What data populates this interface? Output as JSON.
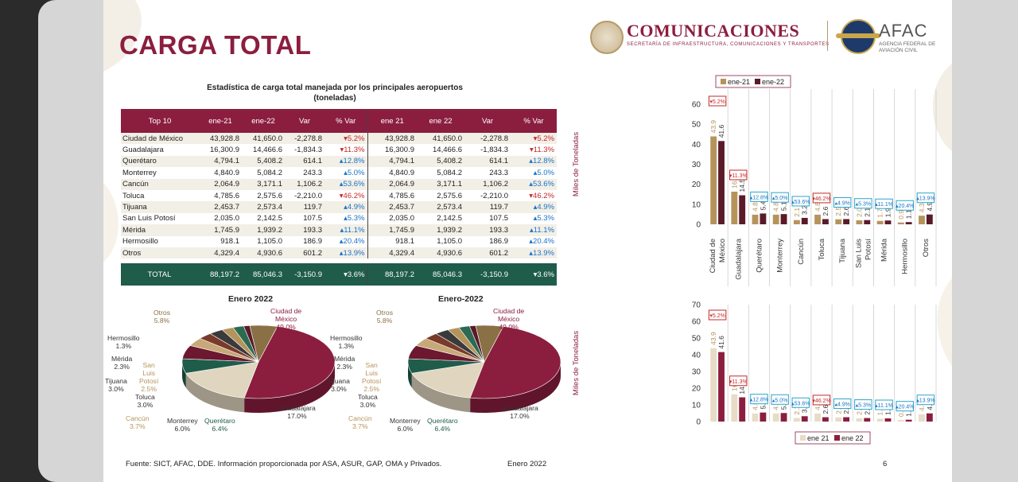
{
  "title": "CARGA TOTAL",
  "logos": {
    "comunicaciones": "COMUNICACIONES",
    "comunicaciones_sub": "SECRETARÍA DE INFRAESTRUCTURA, COMUNICACIONES Y TRANSPORTES",
    "afac": "AFAC",
    "afac_sub": "AGENCIA FEDERAL DE AVIACIÓN CIVIL"
  },
  "table": {
    "title_line1": "Estadística de carga total manejada por los principales aeropuertos",
    "title_line2": "(toneladas)",
    "headers": [
      "Top 10",
      "ene-21",
      "ene-22",
      "Var",
      "% Var",
      "ene 21",
      "ene 22",
      "Var",
      "% Var"
    ],
    "rows": [
      {
        "name": "Ciudad de México",
        "a": "43,928.8",
        "b": "41,650.0",
        "var": "-2,278.8",
        "pct": "▾5.2%",
        "dir": "dn"
      },
      {
        "name": "Guadalajara",
        "a": "16,300.9",
        "b": "14,466.6",
        "var": "-1,834.3",
        "pct": "▾11.3%",
        "dir": "dn"
      },
      {
        "name": "Querétaro",
        "a": "4,794.1",
        "b": "5,408.2",
        "var": "614.1",
        "pct": "▴12.8%",
        "dir": "up"
      },
      {
        "name": "Monterrey",
        "a": "4,840.9",
        "b": "5,084.2",
        "var": "243.3",
        "pct": "▴5.0%",
        "dir": "up"
      },
      {
        "name": "Cancún",
        "a": "2,064.9",
        "b": "3,171.1",
        "var": "1,106.2",
        "pct": "▴53.6%",
        "dir": "up"
      },
      {
        "name": "Toluca",
        "a": "4,785.6",
        "b": "2,575.6",
        "var": "-2,210.0",
        "pct": "▾46.2%",
        "dir": "dn"
      },
      {
        "name": "Tijuana",
        "a": "2,453.7",
        "b": "2,573.4",
        "var": "119.7",
        "pct": "▴4.9%",
        "dir": "up"
      },
      {
        "name": "San Luis Potosí",
        "a": "2,035.0",
        "b": "2,142.5",
        "var": "107.5",
        "pct": "▴5.3%",
        "dir": "up"
      },
      {
        "name": "Mérida",
        "a": "1,745.9",
        "b": "1,939.2",
        "var": "193.3",
        "pct": "▴11.1%",
        "dir": "up"
      },
      {
        "name": "Hermosillo",
        "a": "918.1",
        "b": "1,105.0",
        "var": "186.9",
        "pct": "▴20.4%",
        "dir": "up"
      },
      {
        "name": "Otros",
        "a": "4,329.4",
        "b": "4,930.6",
        "var": "601.2",
        "pct": "▴13.9%",
        "dir": "up"
      }
    ],
    "total": {
      "name": "TOTAL",
      "a": "88,197.2",
      "b": "85,046.3",
      "var": "-3,150.9",
      "pct": "▾3.6%"
    }
  },
  "pie_titles": [
    "Enero 2022",
    "Enero-2022"
  ],
  "chart_data": [
    {
      "type": "pie",
      "title": "Enero 2022",
      "slices": [
        {
          "label": "Ciudad de México",
          "value": 49.0,
          "text": "49.0%",
          "color": "#8b1e3f"
        },
        {
          "label": "Guadalajara",
          "value": 17.0,
          "text": "17.0%",
          "color": "#e0d5bf"
        },
        {
          "label": "Querétaro",
          "value": 6.4,
          "text": "6.4%",
          "color": "#1f5c4a"
        },
        {
          "label": "Monterrey",
          "value": 6.0,
          "text": "6.0%",
          "color": "#6b1830"
        },
        {
          "label": "Cancún",
          "value": 3.7,
          "text": "3.7%",
          "color": "#c8a878"
        },
        {
          "label": "Toluca",
          "value": 3.0,
          "text": "3.0%",
          "color": "#7a3a2a"
        },
        {
          "label": "Tijuana",
          "value": 3.0,
          "text": "3.0%",
          "color": "#3a3a3a"
        },
        {
          "label": "San Luis Potosí",
          "value": 2.5,
          "text": "2.5%",
          "color": "#b5945c"
        },
        {
          "label": "Mérida",
          "value": 2.3,
          "text": "2.3%",
          "color": "#2c6b52"
        },
        {
          "label": "Hermosillo",
          "value": 1.3,
          "text": "1.3%",
          "color": "#5a1a2a"
        },
        {
          "label": "Otros",
          "value": 5.8,
          "text": "5.8%",
          "color": "#8a7045"
        }
      ]
    },
    {
      "type": "pie",
      "title": "Enero-2022",
      "slices": [
        {
          "label": "Ciudad de México",
          "value": 49.0,
          "text": "49.0%",
          "color": "#8b1e3f"
        },
        {
          "label": "Guadalajara",
          "value": 17.0,
          "text": "17.0%",
          "color": "#e0d5bf"
        },
        {
          "label": "Querétaro",
          "value": 6.4,
          "text": "6.4%",
          "color": "#1f5c4a"
        },
        {
          "label": "Monterrey",
          "value": 6.0,
          "text": "6.0%",
          "color": "#6b1830"
        },
        {
          "label": "Cancún",
          "value": 3.7,
          "text": "3.7%",
          "color": "#c8a878"
        },
        {
          "label": "Toluca",
          "value": 3.0,
          "text": "3.0%",
          "color": "#7a3a2a"
        },
        {
          "label": "Tijuana",
          "value": 3.0,
          "text": "3.0%",
          "color": "#3a3a3a"
        },
        {
          "label": "San Luis Potosí",
          "value": 2.5,
          "text": "2.5%",
          "color": "#b5945c"
        },
        {
          "label": "Mérida",
          "value": 2.3,
          "text": "2.3%",
          "color": "#2c6b52"
        },
        {
          "label": "Hermosillo",
          "value": 1.3,
          "text": "1.3%",
          "color": "#5a1a2a"
        },
        {
          "label": "Otros",
          "value": 5.8,
          "text": "5.8%",
          "color": "#8a7045"
        }
      ]
    },
    {
      "type": "bar",
      "categories": [
        "Ciudad de México",
        "Guadalajara",
        "Querétaro",
        "Monterrey",
        "Cancún",
        "Toluca",
        "Tijuana",
        "San Luis Potosí",
        "Mérida",
        "Hermosillo",
        "Otros"
      ],
      "series": [
        {
          "name": "ene-21",
          "values": [
            43.9,
            16.3,
            4.8,
            4.8,
            2.1,
            4.8,
            2.5,
            2.0,
            1.7,
            0.9,
            4.3
          ],
          "color": "#b5945c"
        },
        {
          "name": "ene-22",
          "values": [
            41.6,
            14.5,
            5.4,
            5.1,
            3.2,
            2.6,
            2.6,
            2.1,
            1.9,
            1.1,
            4.9
          ],
          "color": "#5a1a2a"
        }
      ],
      "labels_a": [
        "43.9",
        "16.3",
        "4.8",
        "4.8",
        "2.1",
        "4.8",
        "2.5",
        "2.0",
        "1.7",
        "0.9",
        "4.3"
      ],
      "labels_b": [
        "41.6",
        "14.5",
        "5.4",
        "5.1",
        "3.2",
        "2.6",
        "2.6",
        "2.1",
        "1.9",
        "1.1",
        "4.9"
      ],
      "badges": [
        "▾5.2%",
        "▾11.3%",
        "▴12.8%",
        "▴5.0%",
        "▴53.6%",
        "▾46.2%",
        "▴4.9%",
        "▴5.3%",
        "▴11.1%",
        "▴20.4%",
        "▴13.9%"
      ],
      "badge_dirs": [
        "dn",
        "dn",
        "up",
        "up",
        "up",
        "dn",
        "up",
        "up",
        "up",
        "up",
        "up"
      ],
      "ylabel": "Miles de Toneladas",
      "yticks": [
        "0",
        "10",
        "20",
        "30",
        "40",
        "50",
        "60"
      ],
      "ylim": [
        0,
        60
      ],
      "legend": "top",
      "grid": false
    },
    {
      "type": "bar",
      "categories": [
        "Ciudad de México",
        "Guadalajara",
        "Querétaro",
        "Monterrey",
        "Cancún",
        "Toluca",
        "Tijuana",
        "San Luis Potosí",
        "Mérida",
        "Hermosillo",
        "Otros"
      ],
      "series": [
        {
          "name": "ene 21",
          "values": [
            43.9,
            16.3,
            4.8,
            4.8,
            2.1,
            4.8,
            2.5,
            2.0,
            1.7,
            0.9,
            4.3
          ],
          "color": "#e8dcc6"
        },
        {
          "name": "ene 22",
          "values": [
            41.6,
            14.5,
            5.4,
            5.1,
            3.2,
            2.6,
            2.6,
            2.1,
            1.9,
            1.1,
            4.9
          ],
          "color": "#8b1e3f"
        }
      ],
      "labels_a": [
        "43.9",
        "16.3",
        "4.8",
        "4.8",
        "2.1",
        "4.8",
        "2.5",
        "2.0",
        "1.7",
        "0.9",
        "4.3"
      ],
      "labels_b": [
        "41.6",
        "14.5",
        "5.4",
        "5.1",
        "3.2",
        "2.6",
        "2.6",
        "2.1",
        "1.9",
        "1.1",
        "4.9"
      ],
      "badges": [
        "▾5.2%",
        "▾11.3%",
        "▴12.8%",
        "▴5.0%",
        "▴53.6%",
        "▾46.2%",
        "▴4.9%",
        "▴5.3%",
        "▴11.1%",
        "▴20.4%",
        "▴13.9%"
      ],
      "badge_dirs": [
        "dn",
        "dn",
        "up",
        "up",
        "up",
        "dn",
        "up",
        "up",
        "up",
        "up",
        "up"
      ],
      "ylabel": "Miles de Toneladas",
      "yticks": [
        "0",
        "10",
        "20",
        "30",
        "40",
        "50",
        "60",
        "70"
      ],
      "ylim": [
        0,
        70
      ],
      "legend": "bottom",
      "grid": false
    }
  ],
  "footer": {
    "source": "Fuente: SICT, AFAC, DDE. Información proporcionada por ASA, ASUR, GAP, OMA y Privados.",
    "date": "Enero 2022",
    "page": "6"
  }
}
